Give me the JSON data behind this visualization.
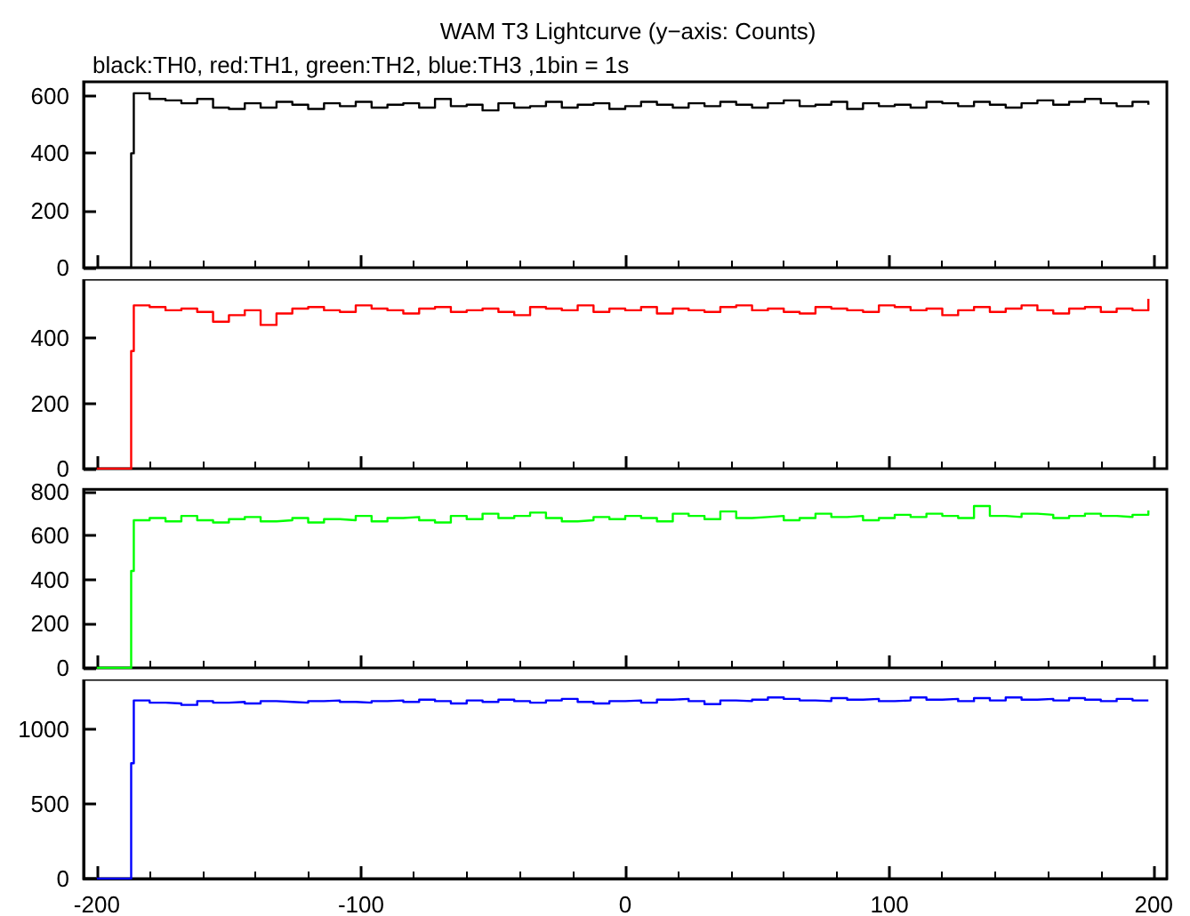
{
  "chart_data": [
    {
      "type": "step",
      "title": "WAM T3 Lightcurve (y−axis: Counts)",
      "subtitle": "black:TH0, red:TH1, green:TH2, blue:TH3 ,1bin = 1s",
      "x": [
        -200,
        -194,
        -188,
        -187,
        -186,
        -180,
        -174,
        -168,
        -162,
        -156,
        -150,
        -144,
        -138,
        -132,
        -126,
        -120,
        -114,
        -108,
        -102,
        -96,
        -90,
        -84,
        -78,
        -72,
        -66,
        -60,
        -54,
        -48,
        -42,
        -36,
        -30,
        -24,
        -18,
        -12,
        -6,
        0,
        6,
        12,
        18,
        24,
        30,
        36,
        42,
        48,
        54,
        60,
        66,
        72,
        78,
        84,
        90,
        96,
        102,
        108,
        114,
        120,
        126,
        132,
        138,
        144,
        150,
        156,
        162,
        168,
        174,
        180,
        186,
        192,
        198
      ],
      "series": [
        {
          "color": "#000000",
          "values": [
            0,
            0,
            0,
            400,
            610,
            590,
            585,
            575,
            590,
            560,
            555,
            575,
            560,
            580,
            570,
            555,
            575,
            565,
            580,
            560,
            570,
            575,
            560,
            590,
            565,
            570,
            550,
            575,
            560,
            565,
            580,
            560,
            570,
            575,
            555,
            565,
            580,
            570,
            560,
            575,
            565,
            580,
            570,
            560,
            575,
            585,
            565,
            570,
            580,
            555,
            575,
            565,
            570,
            560,
            580,
            575,
            565,
            580,
            570,
            560,
            575,
            585,
            570,
            580,
            590,
            575,
            565,
            580,
            570
          ]
        }
      ],
      "xlim": [
        -205,
        205
      ],
      "xticks": [
        -200,
        -100,
        0,
        100,
        200
      ],
      "ylim": [
        0,
        650
      ],
      "yticks": [
        0,
        200,
        400,
        600
      ],
      "tick_labels": "y"
    },
    {
      "type": "step",
      "x": [
        -200,
        -194,
        -188,
        -187,
        -186,
        -180,
        -174,
        -168,
        -162,
        -156,
        -150,
        -144,
        -138,
        -132,
        -126,
        -120,
        -114,
        -108,
        -102,
        -96,
        -90,
        -84,
        -78,
        -72,
        -66,
        -60,
        -54,
        -48,
        -42,
        -36,
        -30,
        -24,
        -18,
        -12,
        -6,
        0,
        6,
        12,
        18,
        24,
        30,
        36,
        42,
        48,
        54,
        60,
        66,
        72,
        78,
        84,
        90,
        96,
        102,
        108,
        114,
        120,
        126,
        132,
        138,
        144,
        150,
        156,
        162,
        168,
        174,
        180,
        186,
        192,
        198
      ],
      "series": [
        {
          "color": "#ff0000",
          "values": [
            0,
            0,
            0,
            360,
            500,
            495,
            485,
            490,
            480,
            450,
            470,
            485,
            440,
            475,
            490,
            495,
            485,
            480,
            500,
            490,
            485,
            475,
            490,
            495,
            480,
            485,
            490,
            480,
            470,
            495,
            490,
            485,
            500,
            480,
            490,
            485,
            495,
            475,
            490,
            485,
            480,
            495,
            500,
            485,
            490,
            480,
            475,
            495,
            490,
            485,
            480,
            500,
            495,
            485,
            490,
            470,
            485,
            495,
            480,
            490,
            500,
            485,
            475,
            490,
            495,
            480,
            490,
            485,
            520
          ]
        }
      ],
      "xlim": [
        -205,
        205
      ],
      "xticks": [
        -200,
        -100,
        0,
        100,
        200
      ],
      "ylim": [
        0,
        580
      ],
      "yticks": [
        0,
        200,
        400
      ],
      "tick_labels": "y"
    },
    {
      "type": "step",
      "x": [
        -200,
        -194,
        -188,
        -187,
        -186,
        -180,
        -174,
        -168,
        -162,
        -156,
        -150,
        -144,
        -138,
        -132,
        -126,
        -120,
        -114,
        -108,
        -102,
        -96,
        -90,
        -84,
        -78,
        -72,
        -66,
        -60,
        -54,
        -48,
        -42,
        -36,
        -30,
        -24,
        -18,
        -12,
        -6,
        0,
        6,
        12,
        18,
        24,
        30,
        36,
        42,
        48,
        54,
        60,
        66,
        72,
        78,
        84,
        90,
        96,
        102,
        108,
        114,
        120,
        126,
        132,
        138,
        144,
        150,
        156,
        162,
        168,
        174,
        180,
        186,
        192,
        198
      ],
      "series": [
        {
          "color": "#00ff00",
          "values": [
            0,
            0,
            0,
            440,
            670,
            680,
            665,
            690,
            670,
            660,
            675,
            685,
            665,
            670,
            680,
            660,
            675,
            670,
            690,
            665,
            680,
            685,
            670,
            660,
            690,
            675,
            700,
            680,
            690,
            705,
            680,
            665,
            670,
            685,
            675,
            690,
            680,
            665,
            700,
            690,
            675,
            710,
            680,
            685,
            690,
            670,
            680,
            700,
            685,
            690,
            670,
            680,
            695,
            685,
            700,
            690,
            680,
            735,
            690,
            685,
            700,
            695,
            680,
            690,
            700,
            690,
            685,
            695,
            715
          ]
        }
      ],
      "xlim": [
        -205,
        205
      ],
      "xticks": [
        -200,
        -100,
        0,
        100,
        200
      ],
      "ylim": [
        0,
        810
      ],
      "yticks": [
        0,
        200,
        400,
        600,
        800
      ],
      "tick_labels": "y"
    },
    {
      "type": "step",
      "x": [
        -200,
        -194,
        -188,
        -187,
        -186,
        -180,
        -174,
        -168,
        -162,
        -156,
        -150,
        -144,
        -138,
        -132,
        -126,
        -120,
        -114,
        -108,
        -102,
        -96,
        -90,
        -84,
        -78,
        -72,
        -66,
        -60,
        -54,
        -48,
        -42,
        -36,
        -30,
        -24,
        -18,
        -12,
        -6,
        0,
        6,
        12,
        18,
        24,
        30,
        36,
        42,
        48,
        54,
        60,
        66,
        72,
        78,
        84,
        90,
        96,
        102,
        108,
        114,
        120,
        126,
        132,
        138,
        144,
        150,
        156,
        162,
        168,
        174,
        180,
        186,
        192,
        198
      ],
      "series": [
        {
          "color": "#0000ff",
          "values": [
            0,
            0,
            0,
            770,
            1190,
            1175,
            1170,
            1160,
            1185,
            1175,
            1180,
            1170,
            1185,
            1180,
            1175,
            1185,
            1190,
            1180,
            1175,
            1185,
            1190,
            1180,
            1195,
            1185,
            1170,
            1190,
            1180,
            1195,
            1185,
            1175,
            1190,
            1200,
            1180,
            1170,
            1185,
            1190,
            1175,
            1195,
            1200,
            1185,
            1165,
            1190,
            1185,
            1195,
            1210,
            1200,
            1190,
            1185,
            1205,
            1195,
            1200,
            1185,
            1190,
            1210,
            1195,
            1200,
            1185,
            1205,
            1190,
            1210,
            1195,
            1200,
            1190,
            1205,
            1195,
            1185,
            1200,
            1190,
            1185
          ]
        }
      ],
      "xlim": [
        -205,
        205
      ],
      "xticks": [
        -200,
        -100,
        0,
        100,
        200
      ],
      "ylim": [
        0,
        1330
      ],
      "yticks": [
        0,
        500,
        1000
      ]
    }
  ]
}
